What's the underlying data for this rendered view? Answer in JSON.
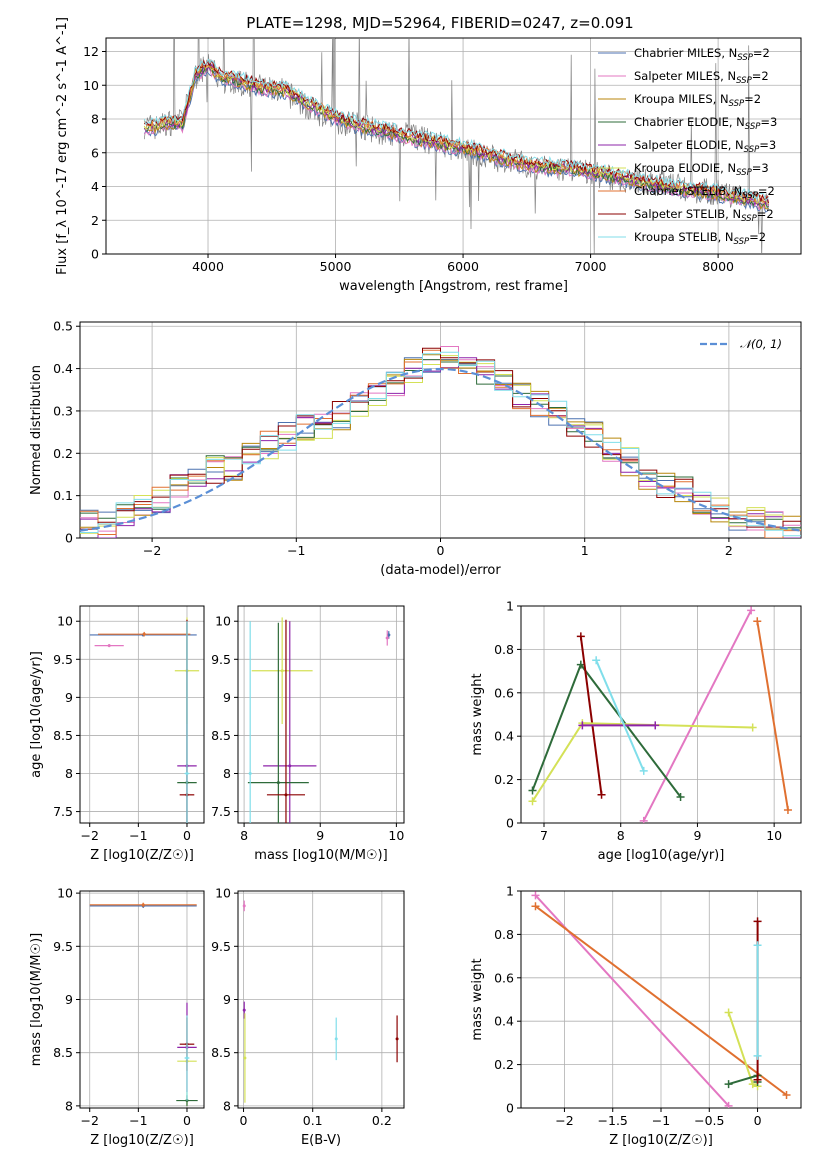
{
  "figure": {
    "title": "PLATE=1298, MJD=52964, FIBERID=0247, z=0.091"
  },
  "models": [
    {
      "name": "Chabrier MILES",
      "n_ssp": "2",
      "color": "#4c72b0"
    },
    {
      "name": "Salpeter MILES",
      "n_ssp": "2",
      "color": "#e377c2"
    },
    {
      "name": "Kroupa MILES",
      "n_ssp": "2",
      "color": "#b8860b"
    },
    {
      "name": "Chabrier ELODIE",
      "n_ssp": "3",
      "color": "#2e6b3a"
    },
    {
      "name": "Salpeter ELODIE",
      "n_ssp": "3",
      "color": "#8e24aa"
    },
    {
      "name": "Kroupa ELODIE",
      "n_ssp": "3",
      "color": "#d4e157"
    },
    {
      "name": "Chabrier STELIB",
      "n_ssp": "2",
      "color": "#e07030"
    },
    {
      "name": "Salpeter STELIB",
      "n_ssp": "2",
      "color": "#8b0000"
    },
    {
      "name": "Kroupa STELIB",
      "n_ssp": "2",
      "color": "#80deea"
    }
  ],
  "chart_data": [
    {
      "panel": "spectrum",
      "type": "line",
      "xlabel": "wavelength [Angstrom, rest frame]",
      "ylabel": "Flux [f_λ 10^-17 erg cm^-2 s^-1 A^-1]",
      "xlim": [
        3200,
        8650
      ],
      "ylim": [
        0,
        12.8
      ],
      "xticks": [
        4000,
        5000,
        6000,
        7000,
        8000
      ],
      "yticks": [
        0,
        2,
        4,
        6,
        8,
        10,
        12
      ],
      "data_color": "#808080",
      "data_x": [
        3500,
        3600,
        3700,
        3800,
        3900,
        4000,
        4100,
        4200,
        4400,
        4600,
        4800,
        5000,
        5200,
        5400,
        5600,
        5800,
        6000,
        6200,
        6400,
        6600,
        6800,
        7000,
        7200,
        7400,
        7600,
        7800,
        8000,
        8200,
        8400
      ],
      "data_y": [
        7.6,
        7.5,
        7.8,
        7.9,
        10.5,
        11.2,
        10.3,
        10.2,
        9.9,
        9.6,
        8.6,
        7.9,
        7.6,
        7.1,
        7.0,
        6.5,
        6.2,
        5.7,
        5.5,
        5.1,
        5.0,
        4.8,
        4.5,
        4.3,
        4.1,
        3.8,
        3.6,
        3.3,
        2.9
      ],
      "model_y": [
        7.5,
        7.6,
        7.8,
        7.7,
        10.6,
        11.2,
        10.5,
        10.4,
        9.9,
        9.7,
        8.9,
        8.1,
        7.6,
        7.3,
        6.9,
        6.6,
        6.3,
        5.9,
        5.5,
        5.2,
        5.1,
        4.9,
        4.6,
        4.3,
        4.0,
        3.8,
        3.6,
        3.3,
        3.0
      ],
      "legend": "upper right"
    },
    {
      "panel": "residual_histogram",
      "type": "bar",
      "xlabel": "(data-model)/error",
      "ylabel": "Normed distribution",
      "xlim": [
        -2.5,
        2.5
      ],
      "ylim": [
        0,
        0.51
      ],
      "xticks": [
        -2,
        -1,
        0,
        1,
        2
      ],
      "yticks": [
        0.0,
        0.1,
        0.2,
        0.3,
        0.4,
        0.5
      ],
      "bins": 40,
      "histogram_values": [
        0.04,
        0.03,
        0.06,
        0.08,
        0.09,
        0.12,
        0.15,
        0.16,
        0.17,
        0.19,
        0.22,
        0.24,
        0.26,
        0.27,
        0.29,
        0.31,
        0.34,
        0.37,
        0.4,
        0.42,
        0.43,
        0.41,
        0.39,
        0.37,
        0.34,
        0.32,
        0.3,
        0.27,
        0.24,
        0.21,
        0.18,
        0.15,
        0.13,
        0.11,
        0.09,
        0.07,
        0.05,
        0.04,
        0.03,
        0.02
      ],
      "gaussian": {
        "label": "𝒩(0, 1)",
        "color": "#5b8fd6",
        "mean": 0,
        "sigma": 1
      },
      "legend": "upper right"
    },
    {
      "panel": "age_vs_Z",
      "type": "scatter",
      "xlabel": "Z [log10(Z/Z☉)]",
      "ylabel": "age  [log10(age/yr)]",
      "xlim": [
        -2.2,
        0.35
      ],
      "ylim": [
        7.35,
        10.2
      ],
      "xticks": [
        -2,
        -1,
        0
      ],
      "yticks": [
        7.5,
        8.0,
        8.5,
        9.0,
        9.5,
        10.0
      ],
      "points": [
        {
          "model": 0,
          "x": -0.9,
          "y": 9.82,
          "xerr": 1.1,
          "yerr": 0.02
        },
        {
          "model": 1,
          "x": -1.6,
          "y": 9.68,
          "xerr": 0.3,
          "yerr": 0.02
        },
        {
          "model": 6,
          "x": -0.88,
          "y": 9.83,
          "xerr": 0.95,
          "yerr": 0.03
        },
        {
          "model": 5,
          "x": 0.0,
          "y": 9.35,
          "xerr": 0.25,
          "yerr": 0.7
        },
        {
          "model": 4,
          "x": 0.0,
          "y": 8.1,
          "xerr": 0.2,
          "yerr": 1.9
        },
        {
          "model": 3,
          "x": 0.0,
          "y": 7.88,
          "xerr": 0.2,
          "yerr": 2.1
        },
        {
          "model": 7,
          "x": 0.0,
          "y": 7.72,
          "xerr": 0.15,
          "yerr": 2.3
        },
        {
          "model": 8,
          "x": 0.0,
          "y": 8.0,
          "xerr": 0.05,
          "yerr": 2.0
        }
      ]
    },
    {
      "panel": "age_vs_mass",
      "type": "scatter",
      "xlabel": "mass [log10(M/M☉)]",
      "ylabel": "",
      "xlim": [
        7.92,
        10.1
      ],
      "ylim": [
        7.35,
        10.2
      ],
      "xticks": [
        8,
        9,
        10
      ],
      "yticks": [
        7.5,
        8.0,
        8.5,
        9.0,
        9.5,
        10.0
      ],
      "points": [
        {
          "model": 0,
          "x": 9.9,
          "y": 9.82,
          "xerr": 0.02,
          "yerr": 0.05
        },
        {
          "model": 1,
          "x": 9.88,
          "y": 9.78,
          "xerr": 0.02,
          "yerr": 0.1
        },
        {
          "model": 5,
          "x": 8.5,
          "y": 9.35,
          "xerr": 0.4,
          "yerr": 0.7
        },
        {
          "model": 4,
          "x": 8.6,
          "y": 8.1,
          "xerr": 0.35,
          "yerr": 1.9
        },
        {
          "model": 3,
          "x": 8.45,
          "y": 7.88,
          "xerr": 0.4,
          "yerr": 2.1
        },
        {
          "model": 7,
          "x": 8.55,
          "y": 7.72,
          "xerr": 0.25,
          "yerr": 2.3
        },
        {
          "model": 8,
          "x": 8.08,
          "y": 8.0,
          "xerr": 0.02,
          "yerr": 2.0
        }
      ]
    },
    {
      "panel": "mass_weight_vs_age",
      "type": "line",
      "xlabel": "age  [log10(age/yr)]",
      "ylabel": "mass weight",
      "xlim": [
        6.7,
        10.35
      ],
      "ylim": [
        0,
        1.0
      ],
      "xticks": [
        7,
        8,
        9,
        10
      ],
      "yticks": [
        0.0,
        0.2,
        0.4,
        0.6,
        0.8,
        1.0
      ],
      "series": [
        {
          "model": 1,
          "x": [
            8.3,
            9.7
          ],
          "y": [
            0.01,
            0.98
          ]
        },
        {
          "model": 6,
          "x": [
            9.78,
            10.18
          ],
          "y": [
            0.93,
            0.06
          ]
        },
        {
          "model": 3,
          "x": [
            6.85,
            7.48,
            8.78
          ],
          "y": [
            0.15,
            0.73,
            0.12
          ]
        },
        {
          "model": 7,
          "x": [
            7.48,
            7.75
          ],
          "y": [
            0.86,
            0.13
          ]
        },
        {
          "model": 5,
          "x": [
            6.85,
            7.5,
            9.72
          ],
          "y": [
            0.1,
            0.46,
            0.44
          ]
        },
        {
          "model": 4,
          "x": [
            7.5,
            8.45
          ],
          "y": [
            0.45,
            0.45
          ]
        },
        {
          "model": 8,
          "x": [
            7.68,
            8.3
          ],
          "y": [
            0.75,
            0.24
          ]
        }
      ]
    },
    {
      "panel": "mass_vs_Z",
      "type": "scatter",
      "xlabel": "Z [log10(Z/Z☉)]",
      "ylabel": "mass [log10(M/M☉)]",
      "xlim": [
        -2.2,
        0.35
      ],
      "ylim": [
        7.98,
        10.02
      ],
      "xticks": [
        -2,
        -1,
        0
      ],
      "yticks": [
        8.0,
        8.5,
        9.0,
        9.5,
        10.0
      ],
      "points": [
        {
          "model": 0,
          "x": -0.9,
          "y": 9.88,
          "xerr": 1.1,
          "yerr": 0.02
        },
        {
          "model": 6,
          "x": -0.9,
          "y": 9.89,
          "xerr": 1.1,
          "yerr": 0.02
        },
        {
          "model": 5,
          "x": 0.0,
          "y": 8.42,
          "xerr": 0.2,
          "yerr": 0.42
        },
        {
          "model": 4,
          "x": 0.0,
          "y": 8.55,
          "xerr": 0.2,
          "yerr": 0.42
        },
        {
          "model": 3,
          "x": 0.0,
          "y": 8.05,
          "xerr": 0.22,
          "yerr": 0.05
        },
        {
          "model": 7,
          "x": 0.0,
          "y": 8.58,
          "xerr": 0.15,
          "yerr": 0.25
        },
        {
          "model": 8,
          "x": 0.0,
          "y": 8.45,
          "xerr": 0.05,
          "yerr": 0.4
        }
      ]
    },
    {
      "panel": "mass_vs_EBV",
      "type": "scatter",
      "xlabel": "E(B-V)",
      "ylabel": "",
      "xlim": [
        -0.008,
        0.232
      ],
      "ylim": [
        7.98,
        10.02
      ],
      "xticks": [
        0.0,
        0.1,
        0.2
      ],
      "yticks": [
        8.0,
        8.5,
        9.0,
        9.5,
        10.0
      ],
      "points": [
        {
          "model": 1,
          "x": 0.001,
          "y": 9.88,
          "xerr": 0,
          "yerr": 0.05
        },
        {
          "model": 4,
          "x": 0.001,
          "y": 8.9,
          "xerr": 0,
          "yerr": 0.08
        },
        {
          "model": 5,
          "x": 0.002,
          "y": 8.45,
          "xerr": 0,
          "yerr": 0.42
        },
        {
          "model": 8,
          "x": 0.134,
          "y": 8.63,
          "xerr": 0,
          "yerr": 0.2
        },
        {
          "model": 7,
          "x": 0.222,
          "y": 8.63,
          "xerr": 0,
          "yerr": 0.22
        }
      ]
    },
    {
      "panel": "mass_weight_vs_Z",
      "type": "line",
      "xlabel": "Z [log10(Z/Z☉)]",
      "ylabel": "mass weight",
      "xlim": [
        -2.45,
        0.45
      ],
      "ylim": [
        0,
        1.0
      ],
      "xticks": [
        -2.0,
        -1.5,
        -1.0,
        -0.5,
        0.0
      ],
      "yticks": [
        0.0,
        0.2,
        0.4,
        0.6,
        0.8,
        1.0
      ],
      "series": [
        {
          "model": 1,
          "x": [
            -2.3,
            -0.3
          ],
          "y": [
            0.98,
            0.01
          ]
        },
        {
          "model": 6,
          "x": [
            -2.3,
            0.3
          ],
          "y": [
            0.93,
            0.06
          ]
        },
        {
          "model": 5,
          "x": [
            -0.3,
            -0.05,
            0.0
          ],
          "y": [
            0.44,
            0.11,
            0.1
          ]
        },
        {
          "model": 3,
          "x": [
            -0.3,
            0.0,
            0.0
          ],
          "y": [
            0.11,
            0.15,
            0.12
          ]
        },
        {
          "model": 7,
          "x": [
            0.0,
            0.0
          ],
          "y": [
            0.86,
            0.13
          ]
        },
        {
          "model": 8,
          "x": [
            0.0,
            0.0
          ],
          "y": [
            0.75,
            0.24
          ]
        }
      ]
    }
  ]
}
